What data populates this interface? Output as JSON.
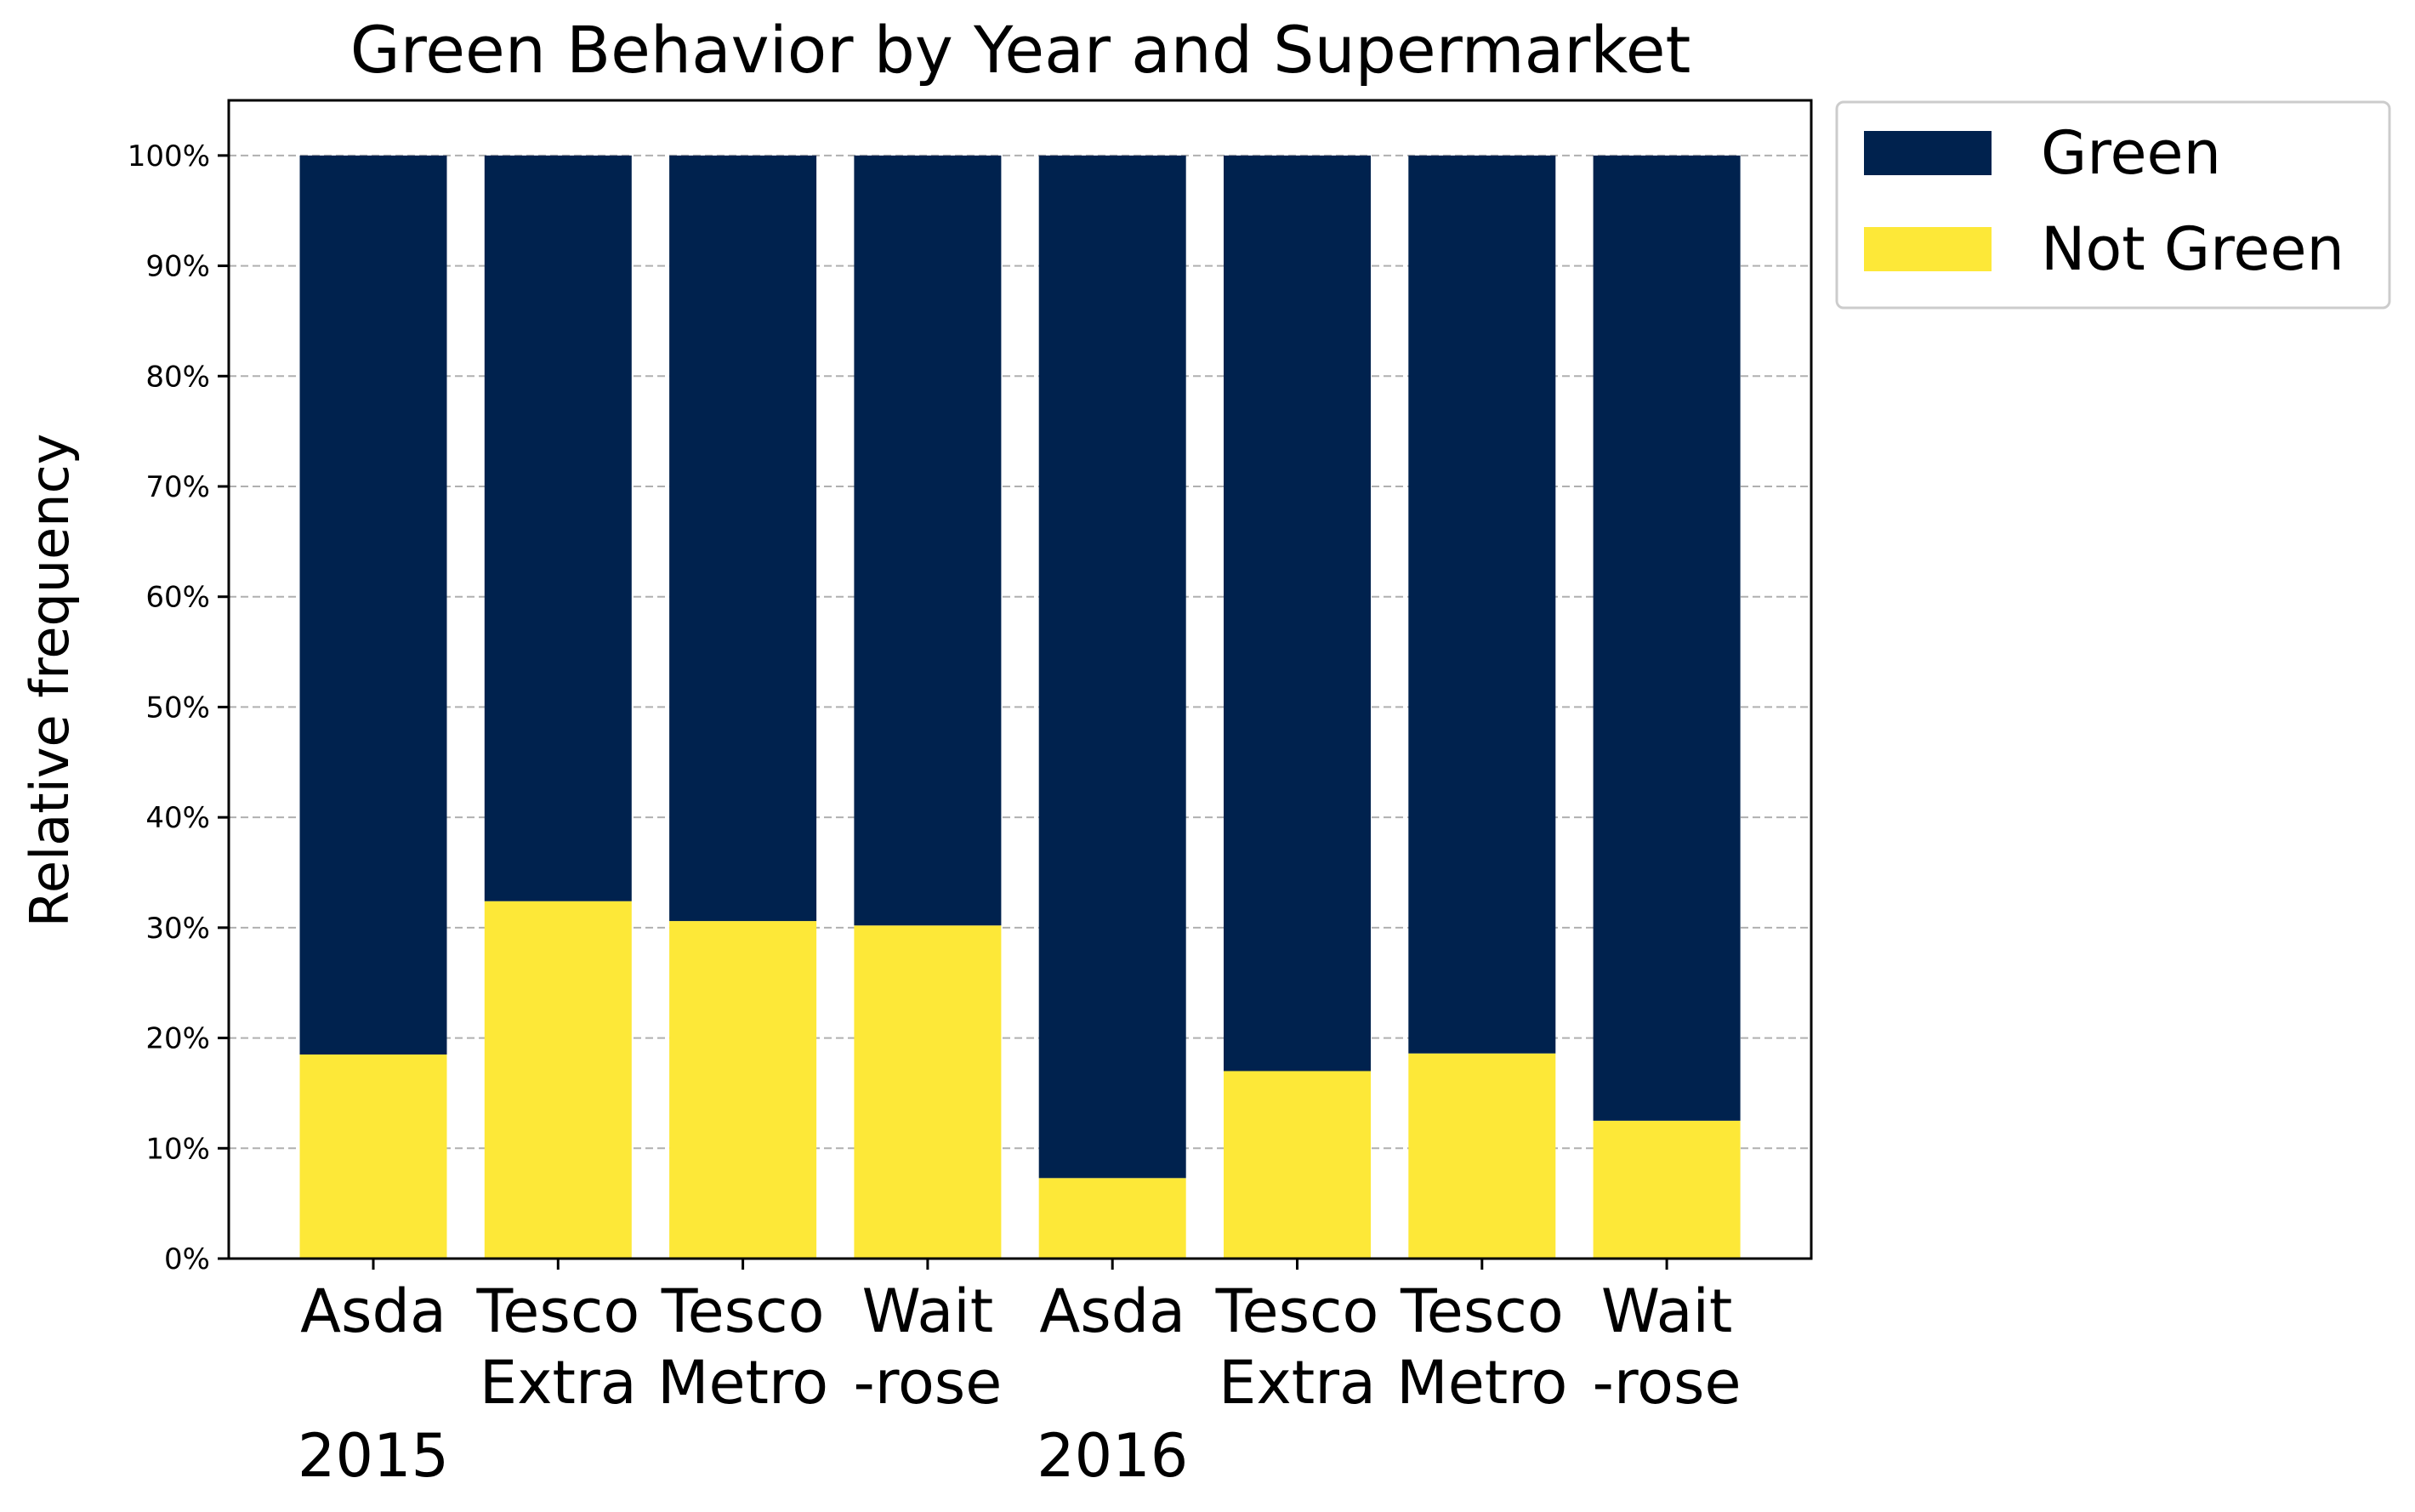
{
  "chart_data": {
    "type": "bar",
    "stacked": true,
    "percent": true,
    "title": "Green Behavior by Year and Supermarket",
    "xlabel": "",
    "ylabel": "Relative frequency",
    "ylim": [
      0,
      105
    ],
    "yticks": [
      "0%",
      "10%",
      "20%",
      "30%",
      "40%",
      "50%",
      "60%",
      "70%",
      "80%",
      "90%",
      "100%"
    ],
    "grid": "horizontal-dashed",
    "legend_position": "outside-top-right",
    "categories": [
      [
        "Asda"
      ],
      [
        "Tesco",
        "Extra"
      ],
      [
        "Tesco",
        "Metro"
      ],
      [
        "Wait",
        "-rose"
      ],
      [
        "Asda"
      ],
      [
        "Tesco",
        "Extra"
      ],
      [
        "Tesco",
        "Metro"
      ],
      [
        "Wait",
        "-rose"
      ]
    ],
    "groups": [
      {
        "label": "2015",
        "start": 0,
        "end": 3
      },
      {
        "label": "2016",
        "start": 4,
        "end": 7
      }
    ],
    "series": [
      {
        "name": "Not Green",
        "color": "#fde838",
        "values": [
          18.5,
          32.4,
          30.6,
          30.2,
          7.3,
          17.0,
          18.6,
          12.5
        ]
      },
      {
        "name": "Green",
        "color": "#00224e",
        "values": [
          81.5,
          67.6,
          69.4,
          69.8,
          92.7,
          83.0,
          81.4,
          87.5
        ]
      }
    ],
    "legend_order": [
      "Green",
      "Not Green"
    ]
  }
}
